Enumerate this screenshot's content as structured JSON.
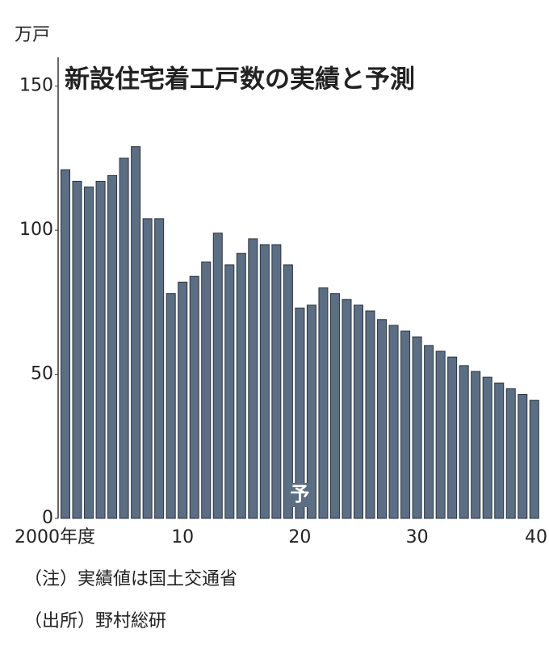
{
  "chart_data": {
    "type": "bar",
    "title": "新設住宅着工戸数の実績と予測",
    "y_unit": "万戸",
    "annotation": "予",
    "notes": [
      "（注）実績値は国土交通省",
      "（出所）野村総研"
    ],
    "categories": [
      "2000年度",
      null,
      null,
      null,
      null,
      null,
      null,
      null,
      null,
      null,
      "10",
      null,
      null,
      null,
      null,
      null,
      null,
      null,
      null,
      null,
      "20",
      null,
      null,
      null,
      null,
      null,
      null,
      null,
      null,
      null,
      "30",
      null,
      null,
      null,
      null,
      null,
      null,
      null,
      null,
      null,
      "40"
    ],
    "values": [
      121,
      117,
      115,
      117,
      119,
      125,
      129,
      104,
      104,
      78,
      82,
      84,
      89,
      99,
      88,
      92,
      97,
      95,
      95,
      88,
      73,
      74,
      80,
      78,
      76,
      74,
      72,
      69,
      67,
      65,
      63,
      60,
      58,
      56,
      53,
      51,
      49,
      47,
      45,
      43,
      41
    ],
    "color": "#5b6e84",
    "ylim": [
      0,
      160
    ],
    "yticks": [
      0,
      50,
      100,
      150
    ],
    "grid": false
  }
}
